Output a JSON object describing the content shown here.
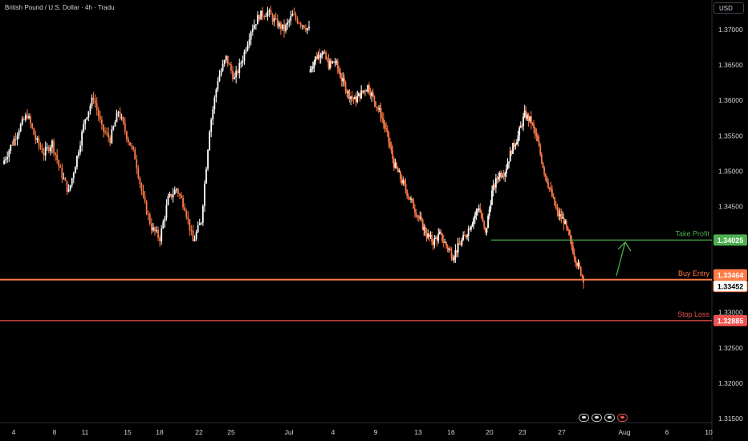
{
  "header": {
    "title": "British Pound / U.S. Dollar · 4h · Tradu",
    "currency": "USD"
  },
  "chart_data": {
    "type": "candlestick",
    "symbol": "GBPUSD",
    "timeframe": "4h",
    "ylim": [
      1.315,
      1.3745
    ],
    "y_ticks": [
      1.37,
      1.365,
      1.36,
      1.355,
      1.35,
      1.345,
      1.33,
      1.325,
      1.32,
      1.315
    ],
    "x_ticks": [
      "4",
      "8",
      "11",
      "15",
      "18",
      "22",
      "25",
      "Jul",
      "4",
      "9",
      "13",
      "16",
      "20",
      "23",
      "27",
      "Aug",
      "6",
      "10"
    ],
    "approx_close_path": [
      [
        1.351,
        1.3535,
        1.356,
        1.358,
        1.3545,
        1.3525,
        1.354,
        1.35,
        1.347,
        1.352,
        1.3575,
        1.3605,
        1.356,
        1.3545,
        1.3585,
        1.355,
        1.352,
        1.346,
        1.342,
        1.3405,
        1.346,
        1.3475,
        1.345,
        1.34,
        1.343,
        1.356,
        1.363,
        1.366,
        1.363,
        1.366,
        1.37,
        1.372,
        1.3725,
        1.371,
        1.37,
        1.372,
        1.371,
        1.37
      ],
      [
        1.364,
        1.366,
        1.367,
        1.365,
        1.3655,
        1.363,
        1.361,
        1.36,
        1.361,
        1.362,
        1.36,
        1.358,
        1.355,
        1.351,
        1.349,
        1.347,
        1.345,
        1.343,
        1.341,
        1.34,
        1.341,
        1.3395,
        1.338,
        1.3395,
        1.341,
        1.343,
        1.345,
        1.341,
        1.347,
        1.3495,
        1.35,
        1.353,
        1.355,
        1.358,
        1.357,
        1.354,
        1.35,
        1.347,
        1.344,
        1.343,
        1.34,
        1.337,
        1.3348
      ]
    ],
    "levels": [
      {
        "name": "Take Profit",
        "value": "1.34025",
        "color": "#4caf50"
      },
      {
        "name": "Buy Entry",
        "value": "1.33464",
        "color": "#ff7a45"
      },
      {
        "name": "Stop Loss",
        "value": "1.32885",
        "color": "#ef5350"
      }
    ],
    "last_price": "1.33452",
    "annotation": "green arrow pointing up toward Take Profit",
    "colors": {
      "bull": "#ffffff",
      "bear": "#ff7a45",
      "take_profit": "#4caf50",
      "buy_entry": "#ff7a45",
      "stop_loss": "#ef5350"
    }
  },
  "footer": {
    "icons": [
      "replay-icon",
      "replay-icon",
      "replay-icon",
      "event-red-icon"
    ]
  }
}
